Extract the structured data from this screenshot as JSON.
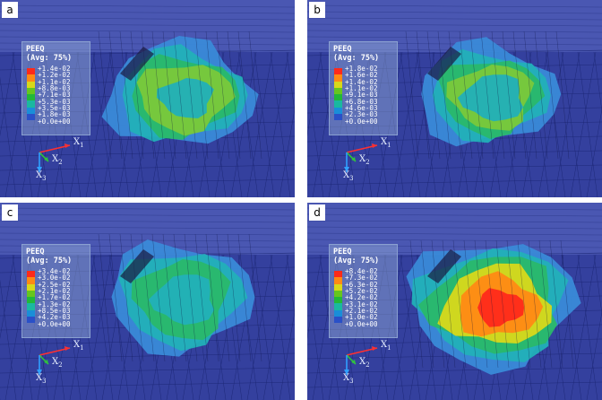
{
  "panels": [
    {
      "label": "a",
      "title1": "PEEQ",
      "title2": "(Avg: 75%)",
      "values": [
        "+1.4e-02",
        "+1.2e-02",
        "+1.1e-02",
        "+8.8e-03",
        "+7.1e-03",
        "+5.3e-03",
        "+3.5e-03",
        "+1.8e-03",
        "+0.0e+00"
      ]
    },
    {
      "label": "b",
      "title1": "PEEQ",
      "title2": "(Avg: 75%)",
      "values": [
        "+1.8e-02",
        "+1.6e-02",
        "+1.4e-02",
        "+1.1e-02",
        "+9.1e-03",
        "+6.8e-03",
        "+4.6e-03",
        "+2.3e-03",
        "+0.0e+00"
      ]
    },
    {
      "label": "c",
      "title1": "PEEQ",
      "title2": "(Avg: 75%)",
      "values": [
        "+3.4e-02",
        "+3.0e-02",
        "+2.5e-02",
        "+2.1e-02",
        "+1.7e-02",
        "+1.3e-02",
        "+8.5e-03",
        "+4.2e-03",
        "+0.0e+00"
      ]
    },
    {
      "label": "d",
      "title1": "PEEQ",
      "title2": "(Avg: 75%)",
      "values": [
        "+8.4e-02",
        "+7.3e-02",
        "+6.3e-02",
        "+5.2e-02",
        "+4.2e-02",
        "+3.1e-02",
        "+2.1e-02",
        "+1.0e-02",
        "+0.0e+00"
      ]
    }
  ],
  "axes": {
    "x1": "X",
    "x1_sub": "1",
    "x2": "X",
    "x2_sub": "2",
    "x3": "X",
    "x3_sub": "3"
  },
  "colorscale": [
    "#ff2a1a",
    "#ff8a14",
    "#d8d81a",
    "#66c61e",
    "#22b838",
    "#1ab8a0",
    "#1a8ed8",
    "#2a50c8"
  ]
}
